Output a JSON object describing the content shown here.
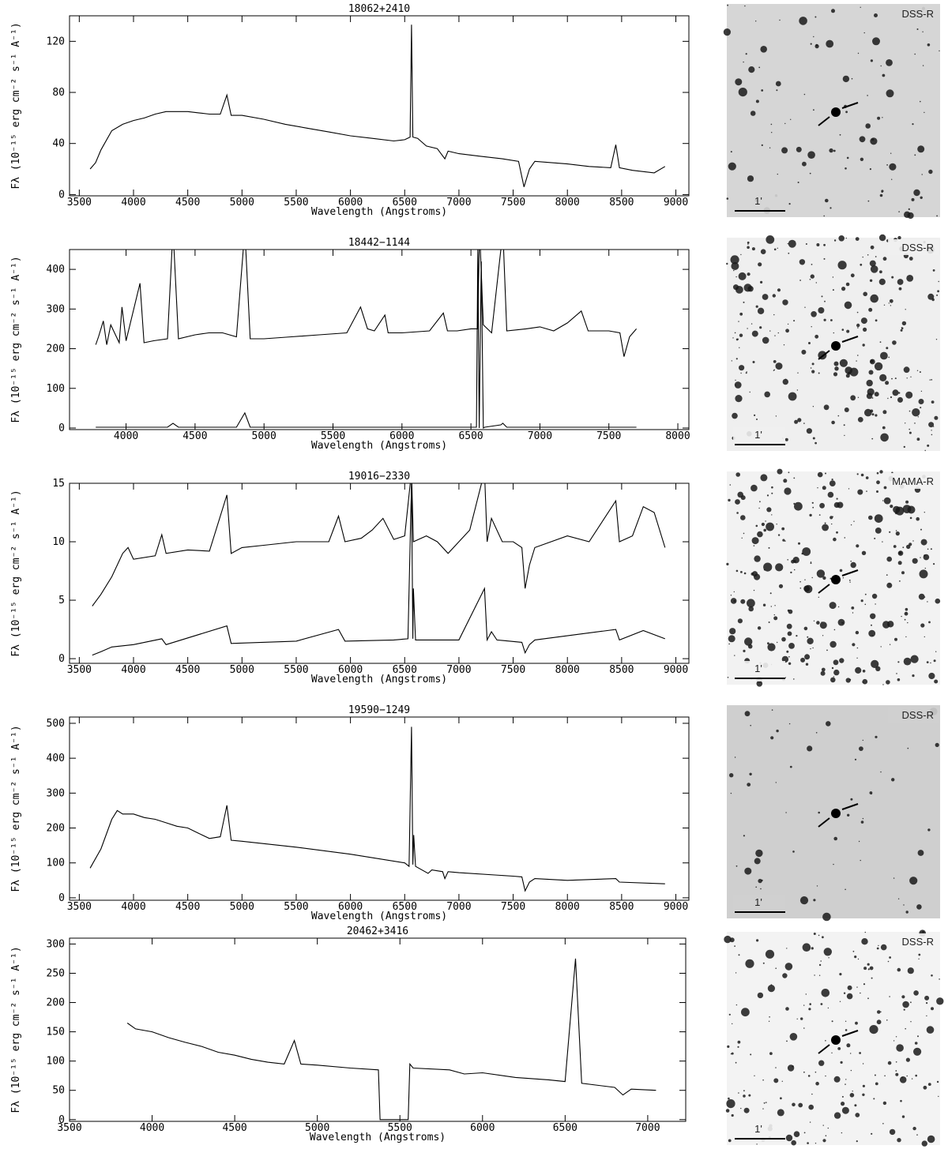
{
  "chart_data": [
    {
      "type": "line",
      "title": "18062+2410",
      "x_label": "Wavelength (Angstroms)",
      "y_label": "Fλ (10⁻¹⁵ erg cm⁻² s⁻¹ A⁻¹)",
      "xlim": [
        3410,
        9120
      ],
      "xticks": [
        3500,
        4000,
        4500,
        5000,
        5500,
        6000,
        6500,
        7000,
        7500,
        8000,
        8500,
        9000
      ],
      "ylim": [
        -1,
        140
      ],
      "yticks": [
        0,
        40,
        80,
        120
      ],
      "series": [
        {
          "color": "#000000",
          "x": [
            3600,
            3650,
            3700,
            3800,
            3900,
            4000,
            4100,
            4200,
            4300,
            4400,
            4500,
            4600,
            4700,
            4800,
            4861,
            4900,
            5000,
            5200,
            5400,
            5600,
            5800,
            6000,
            6200,
            6400,
            6500,
            6550,
            6563,
            6575,
            6620,
            6700,
            6800,
            6870,
            6900,
            7000,
            7200,
            7400,
            7550,
            7600,
            7650,
            7700,
            8000,
            8200,
            8400,
            8446,
            8480,
            8600,
            8800,
            8900
          ],
          "values": [
            20,
            25,
            35,
            50,
            55,
            58,
            60,
            63,
            65,
            65,
            65,
            64,
            63,
            63,
            78,
            62,
            62,
            59,
            55,
            52,
            49,
            46,
            44,
            42,
            43,
            45,
            133,
            45,
            44,
            38,
            36,
            28,
            34,
            32,
            30,
            28,
            26,
            6,
            20,
            26,
            24,
            22,
            21,
            39,
            21,
            19,
            17,
            22
          ]
        }
      ]
    },
    {
      "type": "line",
      "title": "18442−1144",
      "x_label": "Wavelength (Angstroms)",
      "y_label": "Fλ (10⁻¹⁵ erg cm⁻² s⁻¹ A⁻¹)",
      "xlim": [
        3590,
        8080
      ],
      "xticks": [
        4000,
        4500,
        5000,
        5500,
        6000,
        6500,
        7000,
        7500,
        8000
      ],
      "ylim": [
        -4,
        450
      ],
      "yticks": [
        0,
        100,
        200,
        300,
        400
      ],
      "series": [
        {
          "color": "#000000",
          "x": [
            3780,
            3800,
            3835,
            3860,
            3889,
            3950,
            3970,
            4000,
            4101,
            4130,
            4200,
            4300,
            4340,
            4380,
            4500,
            4600,
            4700,
            4800,
            4861,
            4900,
            5000,
            5200,
            5400,
            5600,
            5700,
            5750,
            5800,
            5876,
            5900,
            6000,
            6200,
            6300,
            6330,
            6400,
            6500,
            6548,
            6563,
            6590,
            6650,
            6717,
            6731,
            6760,
            6900,
            7000,
            7100,
            7200,
            7300,
            7350,
            7500,
            7580,
            7610,
            7650,
            7700
          ],
          "values": [
            210,
            230,
            270,
            210,
            260,
            215,
            305,
            220,
            365,
            215,
            220,
            225,
            500,
            225,
            235,
            240,
            240,
            230,
            500,
            225,
            225,
            230,
            235,
            240,
            305,
            250,
            245,
            285,
            240,
            240,
            245,
            290,
            245,
            245,
            250,
            250,
            500,
            260,
            240,
            450,
            500,
            245,
            250,
            255,
            245,
            265,
            295,
            245,
            245,
            240,
            180,
            230,
            250
          ]
        },
        {
          "color": "#000000",
          "x": [
            3780,
            4300,
            4340,
            4380,
            4800,
            4861,
            4900,
            6500,
            6540,
            6550,
            6560,
            6575,
            6590,
            6600,
            6717,
            6731,
            6760,
            7700
          ],
          "values": [
            2,
            2,
            12,
            2,
            2,
            38,
            2,
            2,
            2,
            450,
            0,
            420,
            0,
            2,
            8,
            12,
            2,
            2
          ]
        }
      ]
    },
    {
      "type": "line",
      "title": "19016−2330",
      "x_label": "Wavelength (Angstroms)",
      "y_label": "Fλ (10⁻¹⁵ erg cm⁻² s⁻¹ A⁻¹)",
      "xlim": [
        3410,
        9120
      ],
      "xticks": [
        3500,
        4000,
        4500,
        5000,
        5500,
        6000,
        6500,
        7000,
        7500,
        8000,
        8500,
        9000
      ],
      "ylim": [
        -0.4,
        15
      ],
      "yticks": [
        0,
        5,
        10,
        15
      ],
      "series": [
        {
          "color": "#000000",
          "x": [
            3620,
            3700,
            3800,
            3900,
            3950,
            4000,
            4200,
            4261,
            4300,
            4500,
            4700,
            4861,
            4900,
            5000,
            5200,
            5500,
            5800,
            5890,
            5950,
            6100,
            6200,
            6300,
            6400,
            6500,
            6563,
            6580,
            6700,
            6800,
            6900,
            7000,
            7100,
            7236,
            7260,
            7300,
            7400,
            7500,
            7580,
            7610,
            7650,
            7700,
            8000,
            8200,
            8446,
            8480,
            8600,
            8700,
            8800,
            8900
          ],
          "values": [
            4.5,
            5.5,
            7,
            9,
            9.5,
            8.5,
            8.8,
            10.6,
            9,
            9.3,
            9.2,
            14,
            9,
            9.5,
            9.7,
            10,
            10,
            12.2,
            10,
            10.3,
            11,
            12,
            10.2,
            10.5,
            16,
            10,
            10.5,
            10,
            9,
            10,
            11,
            16,
            10,
            12,
            10,
            10,
            9.5,
            6,
            8,
            9.5,
            10.5,
            10,
            13.5,
            10,
            10.5,
            13,
            12.5,
            9.5
          ]
        },
        {
          "color": "#000000",
          "x": [
            3620,
            3700,
            3800,
            4000,
            4261,
            4300,
            4861,
            4900,
            5500,
            5890,
            5950,
            6400,
            6530,
            6563,
            6575,
            6580,
            6600,
            7000,
            7236,
            7260,
            7300,
            7350,
            7580,
            7610,
            7650,
            7700,
            8446,
            8480,
            8700,
            8900
          ],
          "values": [
            0.3,
            0.6,
            1,
            1.2,
            1.7,
            1.2,
            2.8,
            1.3,
            1.5,
            2.5,
            1.5,
            1.6,
            1.7,
            15,
            1.7,
            6,
            1.6,
            1.6,
            6,
            1.6,
            2.3,
            1.6,
            1.4,
            0.5,
            1.2,
            1.6,
            2.5,
            1.6,
            2.4,
            1.7
          ]
        }
      ]
    },
    {
      "type": "line",
      "title": "19590−1249",
      "x_label": "Wavelength (Angstroms)",
      "y_label": "Fλ (10⁻¹⁵ erg cm⁻² s⁻¹ A⁻¹)",
      "xlim": [
        3410,
        9120
      ],
      "xticks": [
        3500,
        4000,
        4500,
        5000,
        5500,
        6000,
        6500,
        7000,
        7500,
        8000,
        8500,
        9000
      ],
      "ylim": [
        -7,
        518
      ],
      "yticks": [
        0,
        100,
        200,
        300,
        400,
        500
      ],
      "series": [
        {
          "color": "#000000",
          "x": [
            3600,
            3700,
            3800,
            3850,
            3900,
            4000,
            4100,
            4200,
            4300,
            4400,
            4500,
            4600,
            4700,
            4800,
            4861,
            4900,
            5000,
            5500,
            6000,
            6500,
            6540,
            6563,
            6575,
            6583,
            6600,
            6716,
            6750,
            6850,
            6870,
            6900,
            7000,
            7500,
            7580,
            7610,
            7650,
            7700,
            8000,
            8446,
            8480,
            8900
          ],
          "values": [
            85,
            140,
            225,
            250,
            240,
            240,
            230,
            225,
            215,
            205,
            200,
            185,
            170,
            175,
            265,
            165,
            162,
            145,
            125,
            100,
            90,
            490,
            95,
            180,
            90,
            70,
            80,
            75,
            55,
            75,
            72,
            62,
            60,
            20,
            45,
            55,
            50,
            55,
            45,
            40
          ]
        }
      ]
    },
    {
      "type": "line",
      "title": "20462+3416",
      "x_label": "Wavelength (Angstroms)",
      "y_label": "Fλ (10⁻¹⁵ erg cm⁻² s⁻¹ A⁻¹)",
      "xlim": [
        3500,
        7230
      ],
      "xticks": [
        3500,
        4000,
        4500,
        5000,
        5500,
        6000,
        6500,
        7000
      ],
      "ylim": [
        -3,
        310
      ],
      "yticks": [
        0,
        50,
        100,
        150,
        200,
        250,
        300
      ],
      "series": [
        {
          "color": "#000000",
          "x": [
            3850,
            3900,
            4000,
            4100,
            4200,
            4300,
            4400,
            4500,
            4600,
            4700,
            4800,
            4861,
            4900,
            5000,
            5200,
            5370,
            5380,
            5550,
            5560,
            5580,
            5800,
            5890,
            6000,
            6200,
            6400,
            6500,
            6563,
            6600,
            6800,
            6850,
            6900,
            7050
          ],
          "values": [
            165,
            155,
            150,
            140,
            132,
            125,
            115,
            110,
            103,
            98,
            95,
            135,
            95,
            93,
            88,
            85,
            0,
            0,
            95,
            88,
            85,
            78,
            80,
            72,
            68,
            65,
            275,
            62,
            55,
            42,
            52,
            50
          ]
        }
      ]
    }
  ],
  "images": [
    {
      "survey": "DSS-R",
      "scale": "1'"
    },
    {
      "survey": "DSS-R",
      "scale": "1'"
    },
    {
      "survey": "MAMA-R",
      "scale": "1'"
    },
    {
      "survey": "DSS-R",
      "scale": "1'"
    },
    {
      "survey": "DSS-R",
      "scale": "1'"
    }
  ]
}
